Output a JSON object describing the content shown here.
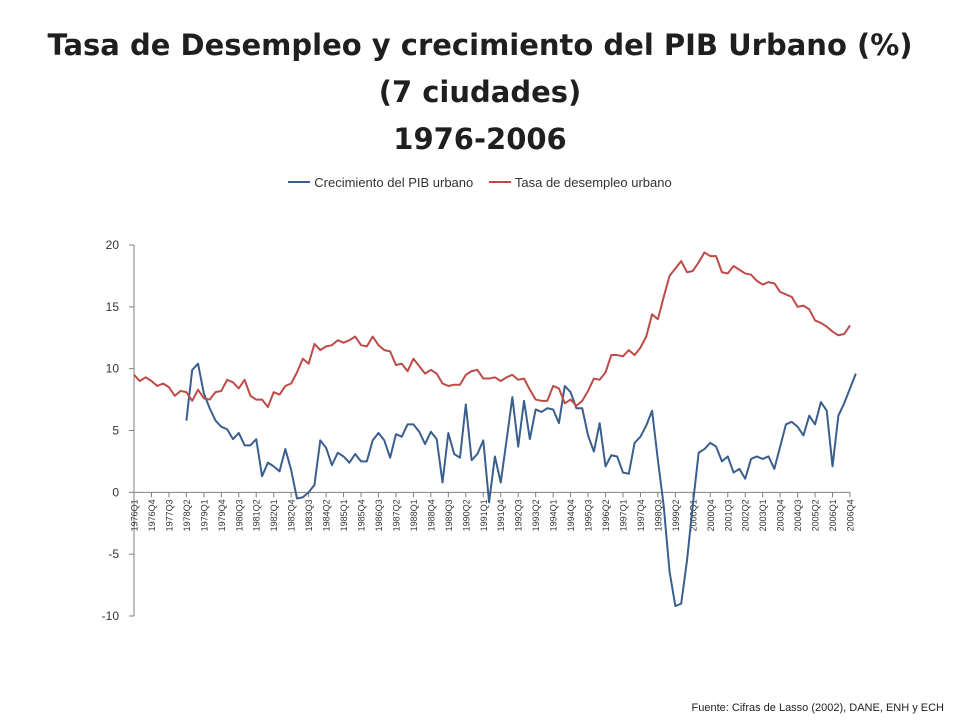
{
  "title": {
    "line1": "Tasa de Desempleo y crecimiento del PIB Urbano (%)",
    "line2": "(7 ciudades)",
    "line3": "1976-2006"
  },
  "source": "Fuente: Cifras de Lasso (2002), DANE, ENH y ECH",
  "colors": {
    "pib": "#3a5f8f",
    "desempleo": "#be4b48",
    "axis": "#7f7f7f",
    "text": "#333333"
  },
  "chart_data": {
    "type": "line",
    "title": "Tasa de Desempleo y crecimiento del PIB Urbano (%) (7 ciudades) 1976-2006",
    "xlabel": "",
    "ylabel": "",
    "ylim": [
      -10,
      20
    ],
    "yticks": [
      -10,
      -5,
      0,
      5,
      10,
      15,
      20
    ],
    "grid": false,
    "legend_position": "top",
    "x_start": "1976Q1",
    "x_tick_labels": [
      "1976Q1",
      "1976Q4",
      "1977Q3",
      "1978Q2",
      "1979Q1",
      "1979Q4",
      "1980Q3",
      "1981Q2",
      "1982Q1",
      "1982Q4",
      "1983Q3",
      "1984Q2",
      "1985Q1",
      "1985Q4",
      "1986Q3",
      "1987Q2",
      "1988Q1",
      "1988Q4",
      "1989Q3",
      "1990Q2",
      "1991Q1",
      "1991Q4",
      "1992Q3",
      "1993Q2",
      "1994Q1",
      "1994Q4",
      "1995Q3",
      "1996Q2",
      "1997Q1",
      "1997Q4",
      "1998Q3",
      "1999Q2",
      "2000Q1",
      "2000Q4",
      "2001Q3",
      "2002Q2",
      "2003Q1",
      "2003Q4",
      "2004Q3",
      "2005Q2",
      "2006Q1",
      "2006Q4"
    ],
    "series": [
      {
        "name": "Crecimiento del PIB urbano",
        "values": [
          null,
          null,
          null,
          null,
          null,
          null,
          null,
          null,
          null,
          5.8,
          9.9,
          10.4,
          8.0,
          6.8,
          5.8,
          5.3,
          5.1,
          4.3,
          4.8,
          3.8,
          3.8,
          4.3,
          1.3,
          2.4,
          2.1,
          1.7,
          3.5,
          1.8,
          -0.5,
          -0.4,
          0.0,
          0.6,
          4.2,
          3.6,
          2.2,
          3.2,
          2.9,
          2.4,
          3.1,
          2.5,
          2.5,
          4.2,
          4.8,
          4.2,
          2.8,
          4.7,
          4.5,
          5.5,
          5.5,
          4.9,
          3.9,
          4.9,
          4.3,
          0.8,
          4.8,
          3.1,
          2.8,
          7.1,
          2.6,
          3.1,
          4.2,
          -0.8,
          2.9,
          0.8,
          4.2,
          7.7,
          3.7,
          7.4,
          4.3,
          6.7,
          6.5,
          6.8,
          6.7,
          5.6,
          8.6,
          8.1,
          6.8,
          6.8,
          4.6,
          3.3,
          5.6,
          2.1,
          3.0,
          2.9,
          1.6,
          1.5,
          4.0,
          4.5,
          5.4,
          6.6,
          2.6,
          -1.1,
          -6.4,
          -9.2,
          -9.0,
          -5.5,
          -1.0,
          3.2,
          3.5,
          4.0,
          3.7,
          2.5,
          2.9,
          1.6,
          1.9,
          1.1,
          2.7,
          2.9,
          2.7,
          2.9,
          1.9,
          3.7,
          5.5,
          5.7,
          5.3,
          4.6,
          6.2,
          5.5,
          7.3,
          6.6,
          2.1,
          6.2,
          7.2,
          8.4,
          9.6
        ]
      },
      {
        "name": "Tasa de desempleo urbano",
        "values": [
          9.5,
          9.0,
          9.3,
          9.0,
          8.6,
          8.8,
          8.5,
          7.8,
          8.2,
          8.1,
          7.4,
          8.3,
          7.6,
          7.5,
          8.1,
          8.2,
          9.1,
          8.9,
          8.4,
          9.1,
          7.8,
          7.5,
          7.5,
          6.9,
          8.1,
          7.9,
          8.6,
          8.8,
          9.7,
          10.8,
          10.4,
          12.0,
          11.5,
          11.8,
          11.9,
          12.3,
          12.1,
          12.3,
          12.6,
          11.9,
          11.8,
          12.6,
          11.9,
          11.5,
          11.4,
          10.3,
          10.4,
          9.8,
          10.8,
          10.2,
          9.6,
          9.9,
          9.6,
          8.8,
          8.6,
          8.7,
          8.7,
          9.5,
          9.8,
          9.9,
          9.2,
          9.2,
          9.3,
          9.0,
          9.3,
          9.5,
          9.1,
          9.2,
          8.3,
          7.5,
          7.4,
          7.4,
          8.6,
          8.4,
          7.2,
          7.5,
          7.0,
          7.4,
          8.2,
          9.2,
          9.1,
          9.7,
          11.1,
          11.1,
          11.0,
          11.5,
          11.1,
          11.7,
          12.6,
          14.4,
          14.0,
          15.8,
          17.5,
          18.1,
          18.7,
          17.8,
          17.9,
          18.6,
          19.4,
          19.1,
          19.1,
          17.8,
          17.7,
          18.3,
          18.0,
          17.7,
          17.6,
          17.1,
          16.8,
          17.0,
          16.9,
          16.2,
          16.0,
          15.8,
          15.0,
          15.1,
          14.8,
          13.9,
          13.7,
          13.4,
          13.0,
          12.7,
          12.8,
          13.5
        ]
      }
    ]
  },
  "legend": {
    "pib": "Crecimiento del PIB urbano",
    "desempleo": "Tasa de desempleo urbano"
  }
}
